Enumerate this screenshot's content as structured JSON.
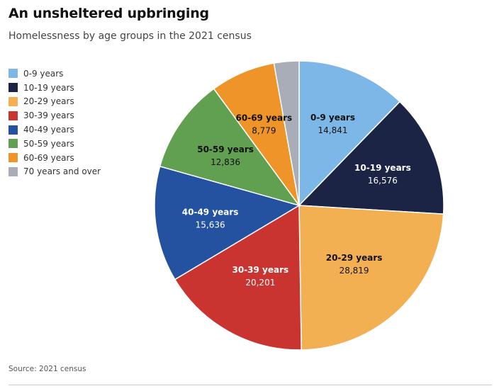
{
  "title": "An unsheltered upbringing",
  "subtitle": "Homelessness by age groups in the 2021 census",
  "source": "Source: 2021 census",
  "chart_data": {
    "type": "pie",
    "title": "An unsheltered upbringing",
    "subtitle": "Homelessness by age groups in the 2021 census",
    "legend_position": "left",
    "start_angle": "12 o'clock, clockwise",
    "slices": [
      {
        "label": "0-9 years",
        "value": 14841,
        "value_label": "14,841",
        "color": "#7db7e8",
        "text_color": "#111111"
      },
      {
        "label": "10-19 years",
        "value": 16576,
        "value_label": "16,576",
        "color": "#1b2444",
        "text_color": "#ffffff"
      },
      {
        "label": "20-29 years",
        "value": 28819,
        "value_label": "28,819",
        "color": "#f2b052",
        "text_color": "#111111"
      },
      {
        "label": "30-39 years",
        "value": 20201,
        "value_label": "20,201",
        "color": "#c93431",
        "text_color": "#ffffff"
      },
      {
        "label": "40-49 years",
        "value": 15636,
        "value_label": "15,636",
        "color": "#2452a0",
        "text_color": "#ffffff"
      },
      {
        "label": "50-59 years",
        "value": 12836,
        "value_label": "12,836",
        "color": "#60a050",
        "text_color": "#111111"
      },
      {
        "label": "60-69 years",
        "value": 8779,
        "value_label": "8,779",
        "color": "#ee9428",
        "text_color": "#111111"
      },
      {
        "label": "70 years and over",
        "value": 3380,
        "value_label": "",
        "color": "#a8adb8",
        "text_color": "#111111"
      }
    ]
  }
}
